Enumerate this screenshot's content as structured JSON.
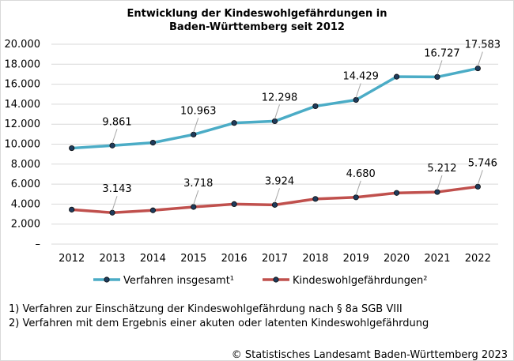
{
  "chart_data": {
    "type": "line",
    "title_line1": "Entwicklung  der Kindeswohlgefährdungen  in",
    "title_line2": "Baden-Württemberg  seit 2012",
    "categories": [
      "2012",
      "2013",
      "2014",
      "2015",
      "2016",
      "2017",
      "2018",
      "2019",
      "2020",
      "2021",
      "2022"
    ],
    "ylim": [
      0,
      20000
    ],
    "ytick_values": [
      0,
      2000,
      4000,
      6000,
      8000,
      10000,
      12000,
      14000,
      16000,
      18000,
      20000
    ],
    "ytick_labels": [
      "–",
      "2.000",
      "4.000",
      "6.000",
      "8.000",
      "10.000",
      "12.000",
      "14.000",
      "16.000",
      "18.000",
      "20.000"
    ],
    "series": [
      {
        "name": "Verfahren insgesamt¹",
        "color": "#4bacc6",
        "values": [
          9600,
          9861,
          10150,
          10963,
          12120,
          12298,
          13800,
          14429,
          16750,
          16727,
          17583
        ],
        "data_labels": [
          {
            "index": 1,
            "text": "9.861"
          },
          {
            "index": 3,
            "text": "10.963"
          },
          {
            "index": 5,
            "text": "12.298"
          },
          {
            "index": 7,
            "text": "14.429"
          },
          {
            "index": 9,
            "text": "16.727"
          },
          {
            "index": 10,
            "text": "17.583"
          }
        ]
      },
      {
        "name": "Kindeswohlgefährdungen²",
        "color": "#c0504d",
        "values": [
          3450,
          3143,
          3380,
          3718,
          4000,
          3924,
          4520,
          4680,
          5120,
          5212,
          5746
        ],
        "data_labels": [
          {
            "index": 1,
            "text": "3.143"
          },
          {
            "index": 3,
            "text": "3.718"
          },
          {
            "index": 5,
            "text": "3.924"
          },
          {
            "index": 7,
            "text": "4.680"
          },
          {
            "index": 9,
            "text": "5.212"
          },
          {
            "index": 10,
            "text": "5.746"
          }
        ]
      }
    ],
    "legend": "bottom",
    "grid": "horizontal"
  },
  "footnotes": {
    "note1": "1) Verfahren zur Einschätzung der Kindeswohlgefährdung  nach § 8a SGB  VIII",
    "note2": "2) Verfahren mit dem Ergebnis  einer akuten oder latenten Kindeswohlgefährdung"
  },
  "copyright": "© Statistisches Landesamt  Baden-Württemberg  2023"
}
